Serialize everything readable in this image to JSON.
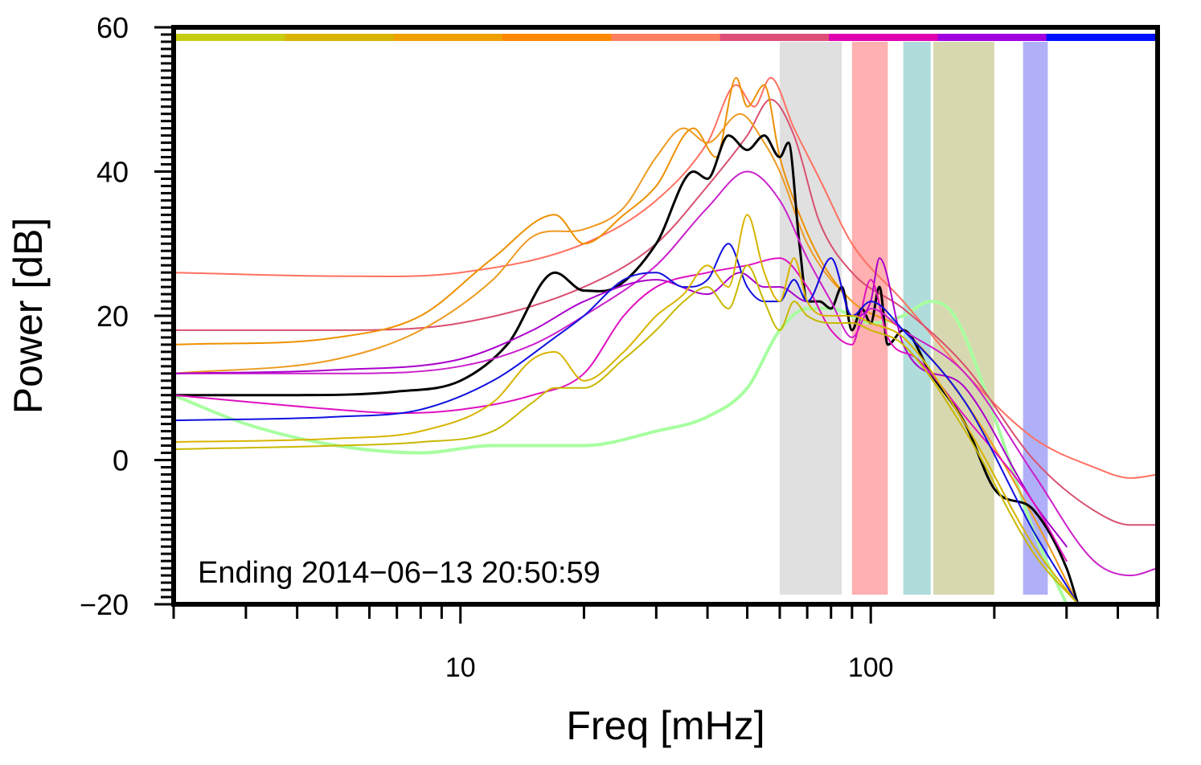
{
  "chart_data": {
    "type": "line",
    "xlabel": "Freq [mHz]",
    "ylabel": "Power [dB]",
    "x_scale": "log",
    "xlim": [
      2,
      500
    ],
    "ylim": [
      -20,
      60
    ],
    "x_tick_labels": [
      {
        "value": 10,
        "label": "10"
      },
      {
        "value": 100,
        "label": "100"
      }
    ],
    "y_tick_labels": [
      {
        "value": -20,
        "label": "−20"
      },
      {
        "value": 0,
        "label": "0"
      },
      {
        "value": 20,
        "label": "20"
      },
      {
        "value": 40,
        "label": "40"
      },
      {
        "value": 60,
        "label": "60"
      }
    ],
    "annotation": "Ending 2014−06−13 20:50:59",
    "grid": false,
    "legend": "none",
    "time_color_strip": [
      "#c8cc10",
      "#d8b400",
      "#eea000",
      "#ff8800",
      "#ff8060",
      "#dd4e78",
      "#e000b0",
      "#a000e0",
      "#0010ff"
    ],
    "frequency_bands": [
      {
        "range": [
          60,
          85
        ],
        "color": "#e0e0e0"
      },
      {
        "range": [
          90,
          110
        ],
        "color": "#ffb0b0"
      },
      {
        "range": [
          120,
          140
        ],
        "color": "#b0dcdc"
      },
      {
        "range": [
          142,
          200
        ],
        "color": "#d8d8b0"
      },
      {
        "range": [
          235,
          270
        ],
        "color": "#b0b0f8"
      }
    ],
    "series": [
      {
        "color": "#a8ffa0",
        "width": 4,
        "x": [
          2,
          3,
          5,
          8,
          12,
          15,
          20,
          30,
          40,
          50,
          60,
          70,
          80,
          100,
          120,
          140,
          160,
          200,
          250,
          300
        ],
        "y": [
          9,
          5,
          2,
          1,
          2,
          2,
          2,
          4,
          6,
          10,
          18,
          21,
          21,
          19,
          20,
          22,
          20,
          6,
          -10,
          -20
        ]
      },
      {
        "color": "#ff7060",
        "width": 2,
        "x": [
          2,
          5,
          10,
          20,
          30,
          40,
          47,
          52,
          57,
          65,
          75,
          90,
          120,
          170,
          250,
          350,
          430,
          500
        ],
        "y": [
          26,
          25.5,
          26,
          30,
          36,
          44,
          52,
          49,
          53,
          46,
          39,
          30,
          22,
          12,
          3,
          -1,
          -2.5,
          -2
        ]
      },
      {
        "color": "#d85070",
        "width": 2,
        "x": [
          2,
          5,
          10,
          20,
          30,
          40,
          50,
          57,
          65,
          75,
          90,
          120,
          170,
          250,
          350,
          430,
          500
        ],
        "y": [
          18,
          18,
          19,
          24,
          30,
          38,
          45,
          50,
          45,
          33,
          26,
          21,
          13,
          0,
          -7,
          -9,
          -9
        ]
      },
      {
        "color": "#ee9000",
        "width": 2,
        "x": [
          2,
          5,
          8,
          12,
          17,
          20,
          25,
          30,
          37,
          42,
          47,
          50,
          55,
          60,
          65,
          75,
          90,
          120,
          170,
          250,
          320
        ],
        "y": [
          16,
          17,
          20,
          28,
          34,
          30,
          34,
          38,
          46,
          42,
          53,
          49,
          52,
          42,
          36,
          28,
          22,
          18,
          8,
          -8,
          -20
        ]
      },
      {
        "color": "#ee9a20",
        "width": 2,
        "x": [
          2,
          5,
          8,
          12,
          15,
          20,
          25,
          30,
          35,
          40,
          48,
          55,
          60,
          70,
          90,
          120,
          170,
          250,
          320
        ],
        "y": [
          12,
          14,
          18,
          25,
          31,
          32,
          35,
          42,
          46,
          44,
          48,
          44,
          40,
          30,
          22,
          18,
          8,
          -8,
          -20
        ]
      },
      {
        "color": "#000000",
        "width": 3,
        "x": [
          2,
          4,
          7,
          10,
          13,
          17,
          20,
          24,
          30,
          37,
          40,
          45,
          50,
          55,
          60,
          63,
          67,
          70,
          75,
          80,
          85,
          90,
          95,
          100,
          105,
          110,
          120,
          140,
          170,
          200,
          250,
          300,
          320
        ],
        "y": [
          9,
          9,
          9.5,
          11,
          16,
          26,
          23.5,
          24,
          30,
          40,
          39,
          45,
          43,
          45,
          42,
          44,
          30,
          22,
          22,
          21,
          24,
          18,
          21,
          19,
          24,
          16,
          18,
          12,
          5,
          -4,
          -7,
          -15,
          -20
        ]
      },
      {
        "color": "#cc20cc",
        "width": 2,
        "x": [
          2,
          5,
          10,
          15,
          20,
          30,
          40,
          50,
          60,
          70,
          80,
          90,
          100,
          120,
          170,
          250,
          350,
          430,
          500
        ],
        "y": [
          12,
          12,
          13,
          16,
          20,
          27,
          35,
          40,
          36,
          28,
          22,
          17,
          21,
          18,
          12,
          -2,
          -14,
          -16,
          -15
        ]
      },
      {
        "color": "#aa00cc",
        "width": 2,
        "x": [
          2,
          5,
          10,
          15,
          20,
          30,
          40,
          48,
          55,
          60,
          70,
          80,
          90,
          100,
          105,
          120,
          170,
          250,
          300
        ],
        "y": [
          12,
          12.5,
          14,
          18,
          22,
          25,
          23,
          26,
          24,
          24,
          22,
          28,
          20,
          22,
          28,
          16,
          10,
          -6,
          -12
        ]
      },
      {
        "color": "#e010c0",
        "width": 2,
        "x": [
          2,
          5,
          7,
          10,
          15,
          20,
          25,
          30,
          40,
          50,
          60,
          70,
          80,
          90,
          100,
          110,
          130,
          170,
          250,
          300
        ],
        "y": [
          9,
          7,
          6.5,
          7,
          9,
          12,
          20,
          24,
          26,
          27,
          28,
          24,
          18,
          16,
          25,
          17,
          14,
          6,
          -6,
          -14
        ]
      },
      {
        "color": "#1010e0",
        "width": 2,
        "x": [
          2,
          5,
          8,
          12,
          17,
          20,
          25,
          30,
          35,
          40,
          45,
          50,
          55,
          60,
          65,
          70,
          80,
          90,
          100,
          120,
          170,
          250,
          320
        ],
        "y": [
          5.5,
          6,
          7,
          11,
          17,
          20,
          25,
          26,
          24,
          25,
          30,
          24,
          22,
          22,
          25,
          22,
          28,
          20,
          22,
          18,
          8,
          -10,
          -20
        ]
      },
      {
        "color": "#d8b400",
        "width": 2,
        "x": [
          2,
          5,
          8,
          12,
          15,
          17,
          20,
          25,
          30,
          35,
          40,
          45,
          50,
          55,
          60,
          65,
          70,
          80,
          90,
          100,
          120,
          170,
          250,
          320
        ],
        "y": [
          2.5,
          3,
          4,
          8,
          14,
          15,
          11,
          15,
          20,
          23,
          27,
          24,
          34,
          26,
          22,
          28,
          22,
          20,
          20,
          19,
          17,
          5,
          -12,
          -20
        ]
      },
      {
        "color": "#c8b800",
        "width": 2,
        "x": [
          2,
          5,
          8,
          12,
          15,
          17,
          20,
          25,
          30,
          35,
          40,
          45,
          50,
          55,
          60,
          65,
          70,
          80,
          90,
          100,
          120,
          170,
          250,
          320
        ],
        "y": [
          1.5,
          2,
          2.5,
          4,
          8,
          10,
          10,
          14,
          18,
          22,
          24,
          21,
          27,
          22,
          18,
          22,
          20,
          19,
          19,
          18,
          16,
          4,
          -13,
          -20
        ]
      }
    ]
  }
}
